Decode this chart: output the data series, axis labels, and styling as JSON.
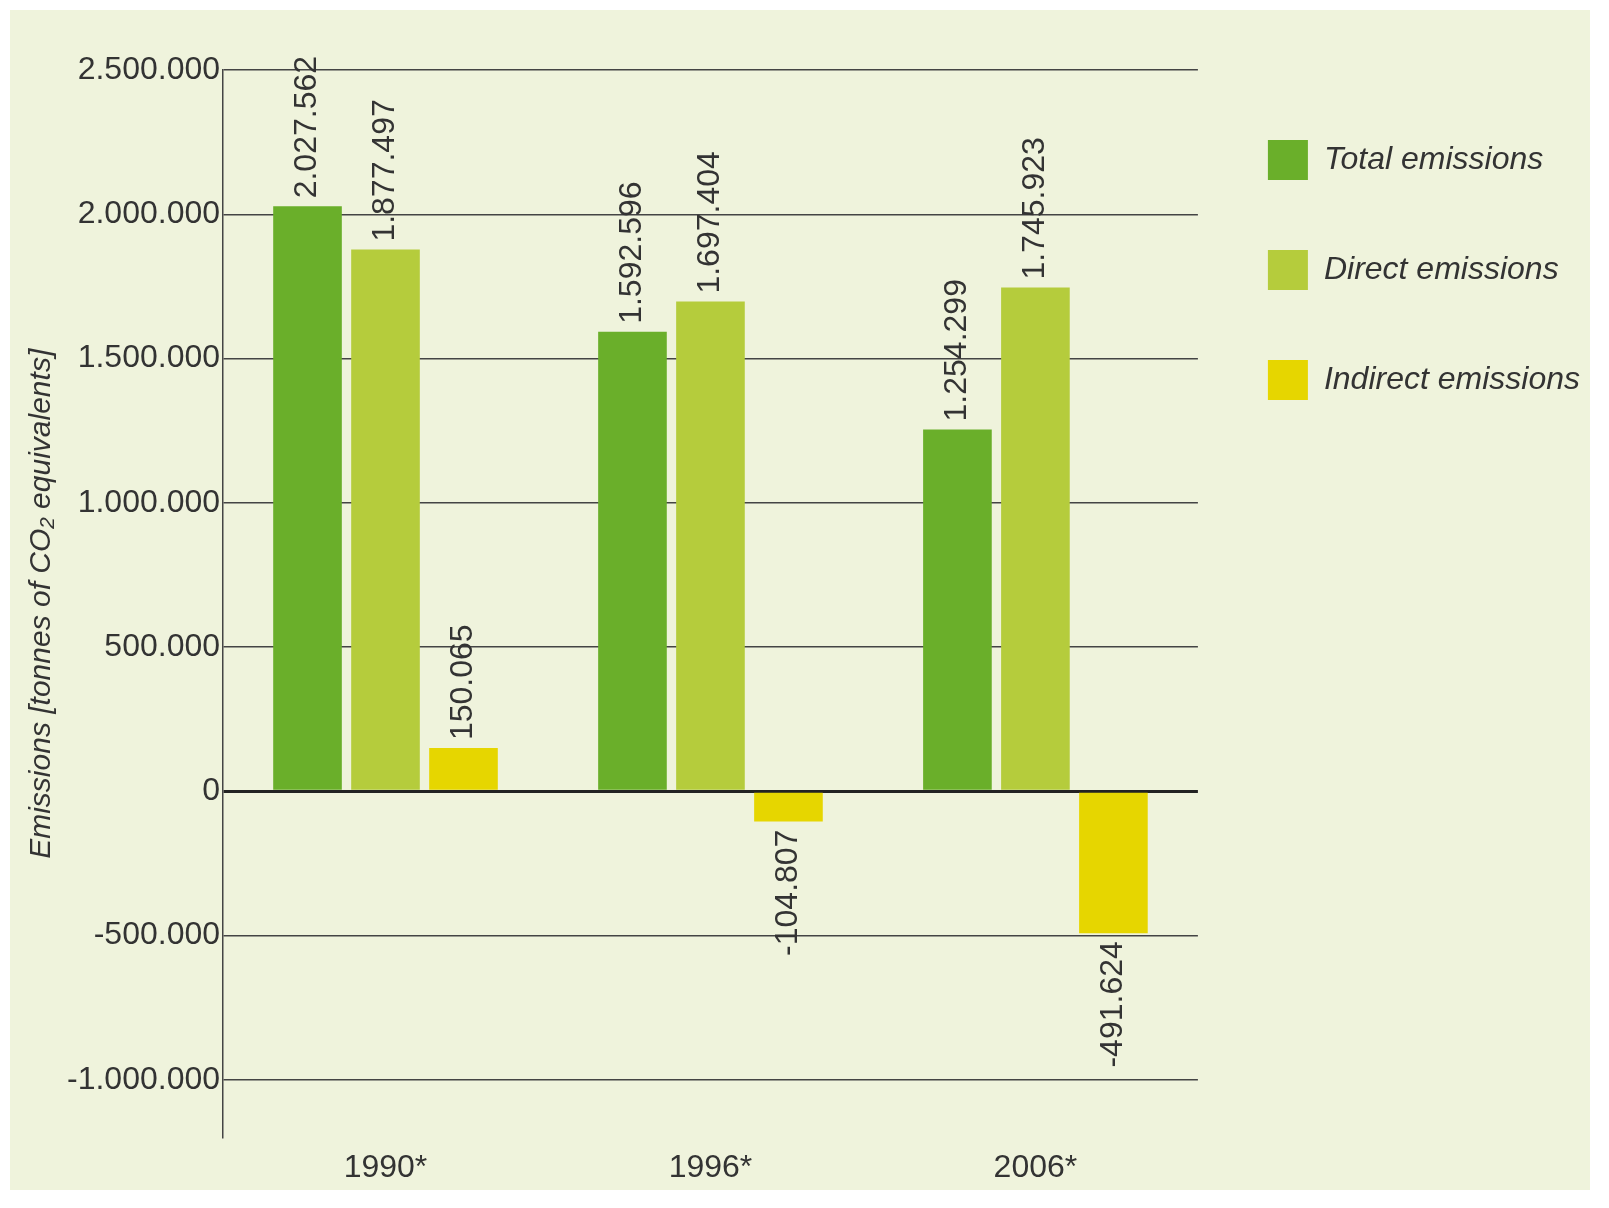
{
  "chart_data": {
    "type": "bar",
    "ylabel": "Emissions [tonnes of CO₂ equivalents]",
    "categories": [
      "1990*",
      "1996*",
      "2006*"
    ],
    "series": [
      {
        "name": "Total emissions",
        "color": "#6aaf2a",
        "values": [
          2027562,
          1592596,
          1254299
        ],
        "value_labels": [
          "2.027.562",
          "1.592.596",
          "1.254.299"
        ]
      },
      {
        "name": "Direct emissions",
        "color": "#b5cc3c",
        "values": [
          1877497,
          1697404,
          1745923
        ],
        "value_labels": [
          "1.877.497",
          "1.697.404",
          "1.745.923"
        ]
      },
      {
        "name": "Indirect emissions",
        "color": "#e6d600",
        "values": [
          150065,
          -104807,
          -491624
        ],
        "value_labels": [
          "150.065",
          "-104.807",
          "-491.624"
        ]
      }
    ],
    "ylim": [
      -1200000,
      2500000
    ],
    "yticks": [
      {
        "value": -1000000,
        "label": "-1.000.000"
      },
      {
        "value": -500000,
        "label": "-500.000"
      },
      {
        "value": 0,
        "label": "0"
      },
      {
        "value": 500000,
        "label": "500.000"
      },
      {
        "value": 1000000,
        "label": "1.000.000"
      },
      {
        "value": 1500000,
        "label": "1.500.000"
      },
      {
        "value": 2000000,
        "label": "2.000.000"
      },
      {
        "value": 2500000,
        "label": "2.500.000"
      }
    ],
    "grid": "y",
    "legend": "top right"
  }
}
